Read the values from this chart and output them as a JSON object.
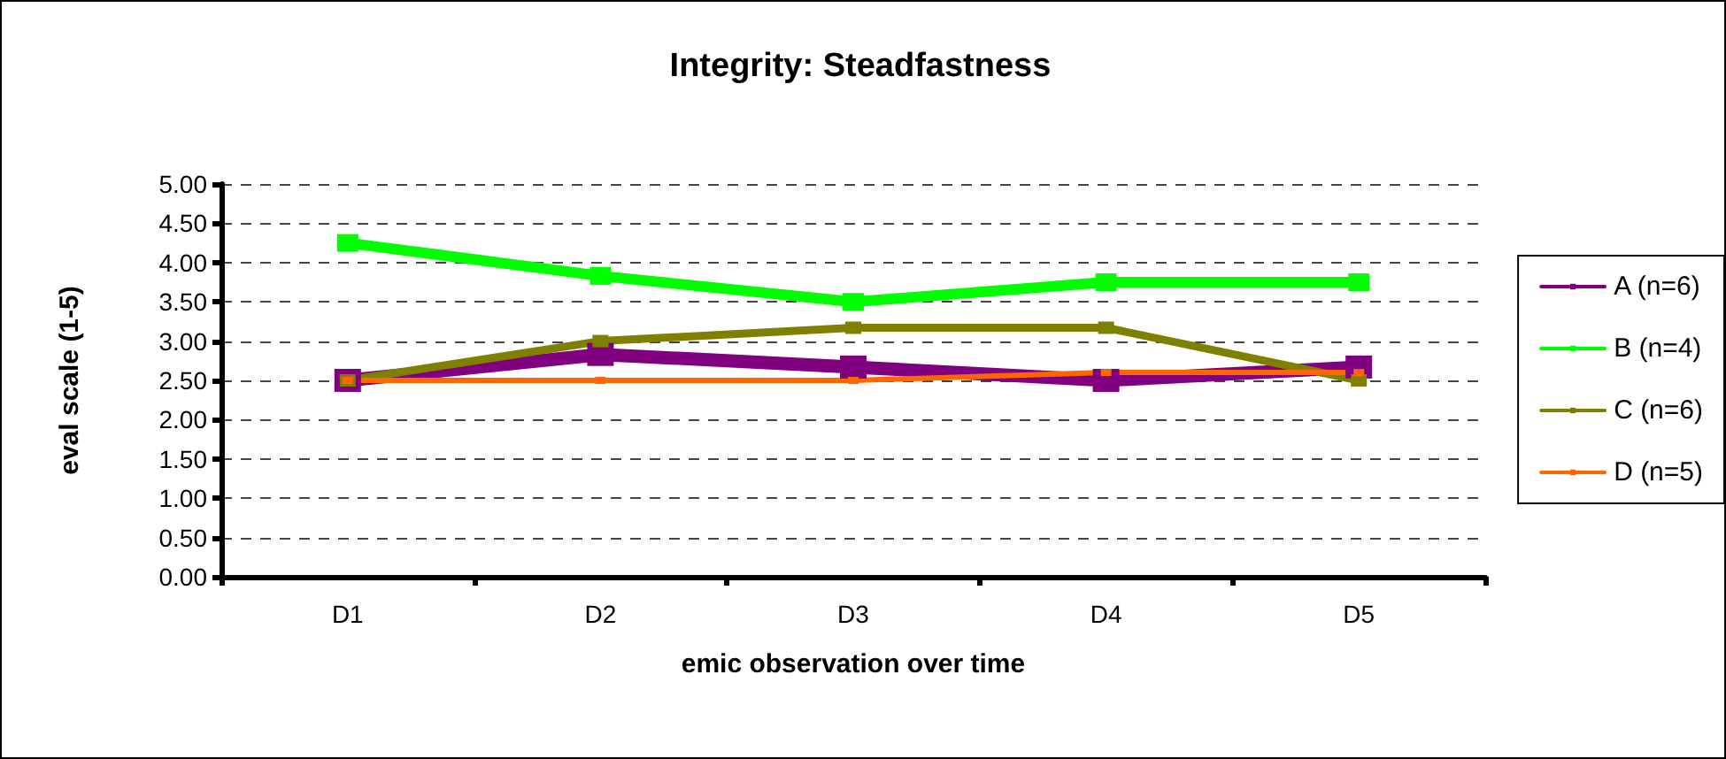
{
  "chart_data": {
    "type": "line",
    "title": "Integrity: Steadfastness",
    "xlabel": "emic observation over time",
    "ylabel": "eval scale (1-5)",
    "categories": [
      "D1",
      "D2",
      "D3",
      "D4",
      "D5"
    ],
    "series": [
      {
        "name": "A (n=6)",
        "color": "#800080",
        "values": [
          2.5,
          2.83,
          2.67,
          2.5,
          2.67
        ]
      },
      {
        "name": "B (n=4)",
        "color": "#00ff00",
        "values": [
          4.25,
          3.83,
          3.5,
          3.75,
          3.75
        ]
      },
      {
        "name": "C (n=6)",
        "color": "#808000",
        "values": [
          2.5,
          3.0,
          3.17,
          3.17,
          2.5
        ]
      },
      {
        "name": "D (n=5)",
        "color": "#ff6600",
        "values": [
          2.5,
          2.5,
          2.5,
          2.6,
          2.6
        ]
      }
    ],
    "ylim": [
      0,
      5
    ],
    "yticks": [
      {
        "value": 0,
        "label": "0.00"
      },
      {
        "value": 0.5,
        "label": "0.50"
      },
      {
        "value": 1,
        "label": "1.00"
      },
      {
        "value": 1.5,
        "label": "1.50"
      },
      {
        "value": 2,
        "label": "2.00"
      },
      {
        "value": 2.5,
        "label": "2.50"
      },
      {
        "value": 3,
        "label": "3.00"
      },
      {
        "value": 3.5,
        "label": "3.50"
      },
      {
        "value": 4,
        "label": "4.00"
      },
      {
        "value": 4.5,
        "label": "4.50"
      },
      {
        "value": 5,
        "label": "5.00"
      }
    ],
    "grid": "y",
    "legend": "right",
    "marker": "square",
    "line_style": "solid"
  }
}
